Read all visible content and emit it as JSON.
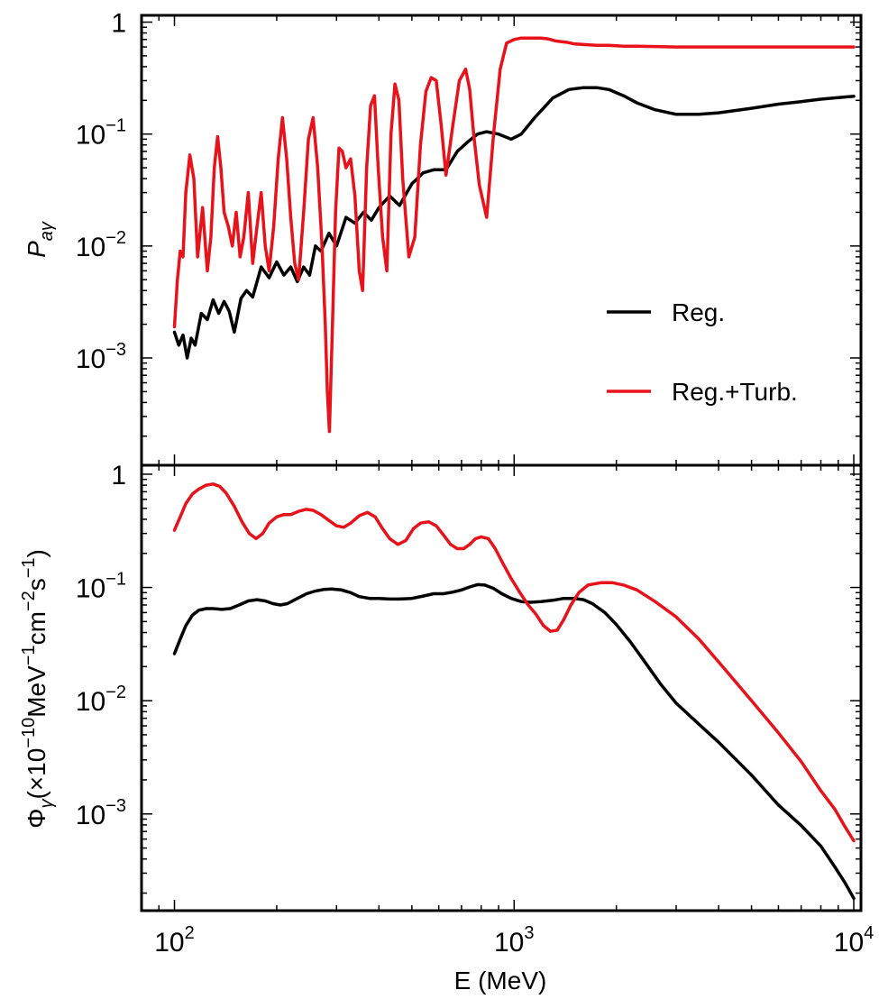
{
  "chart_data": {
    "type": "line",
    "colors": {
      "reg": "#000000",
      "turb": "#e8131a"
    },
    "x_axis": {
      "label": "E (MeV)",
      "scale": "log",
      "xlim": [
        80,
        10500
      ],
      "ticks": [
        {
          "value": 100,
          "base": "10",
          "exp": "2"
        },
        {
          "value": 1000,
          "base": "10",
          "exp": "3"
        },
        {
          "value": 10000,
          "base": "10",
          "exp": "4"
        }
      ]
    },
    "panels": [
      {
        "id": "top",
        "ylabel_main": "P",
        "ylabel_sub": "aγ",
        "yscale": "log",
        "ylim": [
          0.00011,
          1.15
        ],
        "yticks": [
          {
            "value": 1,
            "base": "1",
            "exp": ""
          },
          {
            "value": 0.1,
            "base": "10",
            "exp": "−1"
          },
          {
            "value": 0.01,
            "base": "10",
            "exp": "−2"
          },
          {
            "value": 0.001,
            "base": "10",
            "exp": "−3"
          }
        ],
        "legend": {
          "position": "lower-right",
          "entries": [
            "Reg.",
            "Reg.+Turb."
          ]
        },
        "series": [
          {
            "name": "Reg.",
            "color": "#000000",
            "x": [
              100,
              103,
              106,
              109,
              112,
              115,
              120,
              125,
              130,
              135,
              140,
              145,
              150,
              157,
              163,
              170,
              180,
              190,
              200,
              210,
              220,
              230,
              240,
              250,
              260,
              270,
              285,
              300,
              320,
              340,
              360,
              380,
              400,
              430,
              460,
              500,
              540,
              580,
              630,
              680,
              730,
              780,
              830,
              900,
              980,
              1050,
              1150,
              1300,
              1450,
              1600,
              1750,
              1900,
              2100,
              2300,
              2600,
              3000,
              3500,
              4000,
              5000,
              6000,
              7000,
              8000,
              9000,
              10000
            ],
            "y": [
              0.0017,
              0.0013,
              0.0016,
              0.001,
              0.0015,
              0.0013,
              0.0025,
              0.0022,
              0.0033,
              0.0025,
              0.0032,
              0.0026,
              0.0017,
              0.0034,
              0.004,
              0.0035,
              0.0065,
              0.0052,
              0.0072,
              0.0055,
              0.0065,
              0.0048,
              0.0065,
              0.0055,
              0.01,
              0.009,
              0.013,
              0.01,
              0.018,
              0.016,
              0.02,
              0.017,
              0.022,
              0.028,
              0.023,
              0.036,
              0.045,
              0.048,
              0.048,
              0.07,
              0.085,
              0.1,
              0.105,
              0.1,
              0.09,
              0.1,
              0.14,
              0.21,
              0.25,
              0.26,
              0.26,
              0.25,
              0.22,
              0.19,
              0.165,
              0.15,
              0.15,
              0.155,
              0.17,
              0.185,
              0.195,
              0.205,
              0.212,
              0.218
            ]
          },
          {
            "name": "Reg.+Turb.",
            "color": "#e8131a",
            "x": [
              100,
              102,
              104,
              106,
              108,
              111,
              114,
              117,
              121,
              125,
              128,
              131,
              134,
              137,
              140,
              144,
              148,
              152,
              156,
              160,
              165,
              170,
              175,
              180,
              185,
              190,
              196,
              202,
              208,
              214,
              220,
              226,
              232,
              240,
              248,
              256,
              264,
              272,
              278,
              282,
              286,
              292,
              298,
              305,
              312,
              320,
              330,
              340,
              350,
              358,
              368,
              378,
              388,
              398,
              410,
              422,
              434,
              446,
              458,
              470,
              490,
              510,
              530,
              550,
              570,
              590,
              610,
              630,
              660,
              690,
              720,
              740,
              760,
              790,
              830,
              870,
              910,
              950,
              1000,
              1050,
              1100,
              1150,
              1200,
              1250,
              1280,
              1320,
              1370,
              1430,
              1500,
              1600,
              1750,
              1900,
              2100,
              2300,
              2600,
              3000,
              3500,
              4000,
              5000,
              6000,
              7000,
              8000,
              9000,
              10000
            ],
            "y": [
              0.0019,
              0.005,
              0.009,
              0.008,
              0.03,
              0.065,
              0.04,
              0.008,
              0.022,
              0.006,
              0.012,
              0.05,
              0.095,
              0.05,
              0.02,
              0.015,
              0.01,
              0.02,
              0.008,
              0.012,
              0.03,
              0.007,
              0.015,
              0.03,
              0.01,
              0.006,
              0.015,
              0.06,
              0.14,
              0.06,
              0.018,
              0.007,
              0.005,
              0.02,
              0.09,
              0.14,
              0.05,
              0.01,
              0.002,
              0.0005,
              0.00022,
              0.002,
              0.02,
              0.075,
              0.07,
              0.05,
              0.06,
              0.028,
              0.006,
              0.004,
              0.05,
              0.18,
              0.22,
              0.05,
              0.012,
              0.006,
              0.1,
              0.28,
              0.2,
              0.04,
              0.008,
              0.012,
              0.08,
              0.24,
              0.32,
              0.3,
              0.12,
              0.043,
              0.12,
              0.3,
              0.38,
              0.25,
              0.1,
              0.035,
              0.018,
              0.1,
              0.38,
              0.65,
              0.7,
              0.72,
              0.72,
              0.72,
              0.72,
              0.71,
              0.7,
              0.68,
              0.67,
              0.66,
              0.64,
              0.63,
              0.62,
              0.62,
              0.61,
              0.61,
              0.605,
              0.6,
              0.6,
              0.6,
              0.6,
              0.6,
              0.6,
              0.6,
              0.6,
              0.6
            ]
          }
        ]
      },
      {
        "id": "bottom",
        "ylabel_main": "Φ",
        "ylabel_sub": "γ",
        "ylabel_rest": "(×10",
        "ylabel_exp1": "−10",
        "ylabel_mev": "MeV",
        "ylabel_exp2": "−1",
        "ylabel_cm": "cm",
        "ylabel_exp3": "−2",
        "ylabel_s": "s",
        "ylabel_exp4": "−1",
        "ylabel_close": ")",
        "yscale": "log",
        "ylim": [
          0.00014,
          1.2
        ],
        "yticks": [
          {
            "value": 1,
            "base": "1",
            "exp": ""
          },
          {
            "value": 0.1,
            "base": "10",
            "exp": "−1"
          },
          {
            "value": 0.01,
            "base": "10",
            "exp": "−2"
          },
          {
            "value": 0.001,
            "base": "10",
            "exp": "−3"
          }
        ],
        "series": [
          {
            "name": "Reg.",
            "color": "#000000",
            "x": [
              100,
              104,
              108,
              113,
              118,
              124,
              130,
              138,
              146,
              155,
              165,
              175,
              185,
              195,
              205,
              215,
              230,
              245,
              260,
              275,
              290,
              310,
              330,
              350,
              375,
              400,
              430,
              460,
              500,
              540,
              580,
              620,
              660,
              700,
              740,
              780,
              820,
              870,
              920,
              980,
              1050,
              1120,
              1200,
              1300,
              1400,
              1500,
              1600,
              1700,
              1850,
              2000,
              2200,
              2400,
              2700,
              3000,
              3500,
              4000,
              5000,
              6000,
              7000,
              8000,
              8800,
              9400,
              10000
            ],
            "y": [
              0.026,
              0.035,
              0.046,
              0.057,
              0.063,
              0.065,
              0.065,
              0.064,
              0.065,
              0.07,
              0.076,
              0.078,
              0.076,
              0.072,
              0.07,
              0.072,
              0.08,
              0.088,
              0.093,
              0.096,
              0.097,
              0.095,
              0.09,
              0.083,
              0.08,
              0.08,
              0.079,
              0.079,
              0.08,
              0.084,
              0.088,
              0.088,
              0.091,
              0.095,
              0.101,
              0.106,
              0.105,
              0.098,
              0.088,
              0.08,
              0.075,
              0.074,
              0.075,
              0.077,
              0.08,
              0.08,
              0.078,
              0.072,
              0.06,
              0.047,
              0.033,
              0.023,
              0.014,
              0.0095,
              0.0062,
              0.0043,
              0.0022,
              0.0012,
              0.00079,
              0.00052,
              0.00034,
              0.00025,
              0.00018
            ]
          },
          {
            "name": "Reg.+Turb.",
            "color": "#e8131a",
            "x": [
              100,
              104,
              108,
              113,
              118,
              124,
              130,
              136,
              142,
              150,
              158,
              166,
              174,
              182,
              190,
              200,
              210,
              220,
              232,
              244,
              256,
              270,
              285,
              300,
              315,
              330,
              350,
              370,
              390,
              410,
              430,
              455,
              480,
              505,
              530,
              560,
              590,
              620,
              650,
              680,
              710,
              740,
              770,
              800,
              840,
              880,
              930,
              980,
              1040,
              1100,
              1160,
              1220,
              1280,
              1340,
              1400,
              1470,
              1550,
              1650,
              1800,
              1950,
              2100,
              2300,
              2600,
              3000,
              3500,
              4000,
              5000,
              6000,
              7000,
              8000,
              8800,
              9400,
              10000
            ],
            "y": [
              0.32,
              0.42,
              0.55,
              0.67,
              0.74,
              0.8,
              0.82,
              0.78,
              0.68,
              0.52,
              0.38,
              0.3,
              0.27,
              0.3,
              0.37,
              0.42,
              0.44,
              0.44,
              0.47,
              0.49,
              0.48,
              0.44,
              0.39,
              0.35,
              0.34,
              0.37,
              0.43,
              0.46,
              0.42,
              0.33,
              0.27,
              0.24,
              0.26,
              0.33,
              0.37,
              0.38,
              0.35,
              0.29,
              0.24,
              0.22,
              0.22,
              0.24,
              0.27,
              0.28,
              0.27,
              0.22,
              0.16,
              0.12,
              0.09,
              0.07,
              0.058,
              0.046,
              0.041,
              0.042,
              0.052,
              0.07,
              0.09,
              0.105,
              0.11,
              0.11,
              0.105,
              0.095,
              0.075,
              0.055,
              0.035,
              0.022,
              0.01,
              0.0052,
              0.0029,
              0.0016,
              0.0011,
              0.00078,
              0.00058
            ]
          }
        ]
      }
    ]
  }
}
